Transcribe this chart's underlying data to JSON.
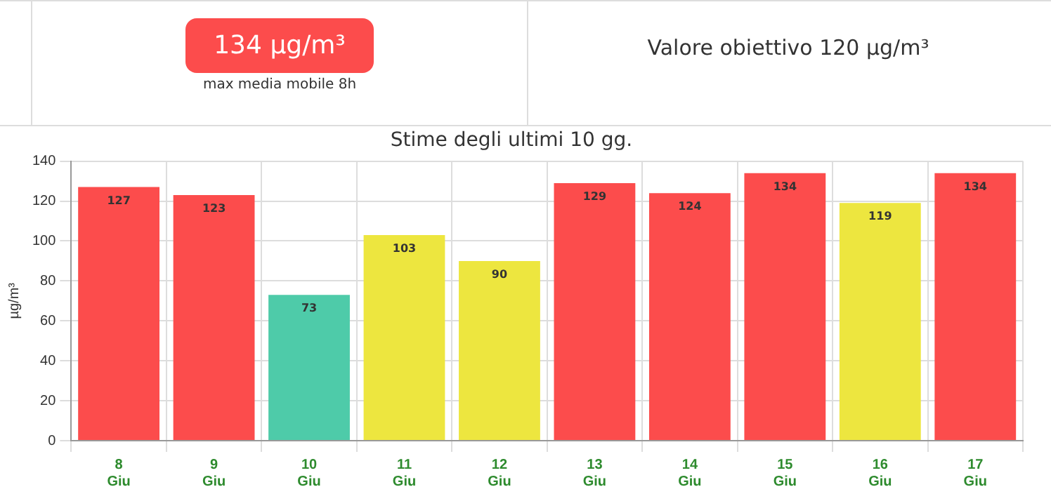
{
  "chart_data": {
    "type": "bar",
    "title": "Stime degli ultimi 10 gg.",
    "ylabel": "µg/m³",
    "annotations": [
      "134 µg/m³",
      "max media mobile 8h",
      "Valore obiettivo 120 µg/m³"
    ],
    "categories": [
      "8 Giu",
      "9 Giu",
      "10 Giu",
      "11 Giu",
      "12 Giu",
      "13 Giu",
      "14 Giu",
      "15 Giu",
      "16 Giu",
      "17 Giu"
    ],
    "values": [
      127,
      123,
      73,
      103,
      90,
      129,
      124,
      134,
      119,
      134
    ],
    "colors": [
      "#fc4c4c",
      "#fc4c4c",
      "#4ecba9",
      "#ede63f",
      "#ede63f",
      "#fc4c4c",
      "#fc4c4c",
      "#fc4c4c",
      "#ede63f",
      "#fc4c4c"
    ],
    "ylim": [
      0,
      140
    ],
    "yticks": [
      0,
      20,
      40,
      60,
      80,
      100,
      120,
      140
    ],
    "grid": true,
    "data_labels": true,
    "legend": false
  }
}
